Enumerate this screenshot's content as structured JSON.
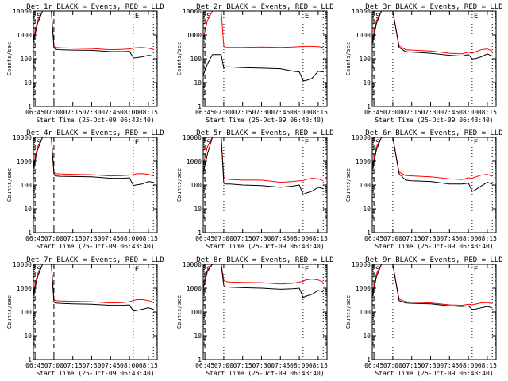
{
  "figure": {
    "shared_xlabel": "Start Time (25-Oct-09 06:43:40)",
    "shared_ylabel": "Counts/sec",
    "x_tick_labels": [
      "06:45",
      "07:00",
      "07:15",
      "07:30",
      "07:45",
      "08:00",
      "08:15"
    ],
    "y_tick_labels": [
      "1",
      "10",
      "100",
      "1000",
      "10000"
    ],
    "colors": {
      "events": "#000000",
      "lld": "#ff0000"
    }
  },
  "chart_data": [
    {
      "type": "line",
      "title": "Det 1r BLACK = Events, RED = LLD",
      "xlabel": "Start Time (25-Oct-09 06:43:40)",
      "ylabel": "Counts/sec",
      "yscale": "log",
      "ylim": [
        1,
        10000
      ],
      "xlim": [
        "06:43:40",
        "08:22"
      ],
      "x_ticks": [
        "06:45",
        "07:00",
        "07:15",
        "07:30",
        "07:45",
        "08:00",
        "08:15"
      ],
      "markers": {
        "S": "06:45",
        "E": "08:03"
      },
      "series": [
        {
          "color": "#000000",
          "x": [
            "06:43:40",
            "06:47",
            "06:51",
            "06:55",
            "06:58",
            "07:00",
            "07:01",
            "07:05",
            "07:15",
            "07:30",
            "07:45",
            "07:55",
            "08:00",
            "08:03",
            "08:05",
            "08:10",
            "08:15",
            "08:19"
          ],
          "y": [
            500,
            3000,
            10000,
            10000,
            10000,
            300,
            250,
            240,
            230,
            225,
            200,
            200,
            205,
            110,
            110,
            120,
            140,
            130
          ]
        },
        {
          "color": "#ff0000",
          "x": [
            "06:43:40",
            "06:47",
            "06:51",
            "06:55",
            "06:58",
            "07:00",
            "07:01",
            "07:05",
            "07:15",
            "07:30",
            "07:45",
            "07:55",
            "08:00",
            "08:03",
            "08:05",
            "08:10",
            "08:15",
            "08:19"
          ],
          "y": [
            700,
            4000,
            10000,
            10000,
            10000,
            350,
            300,
            290,
            280,
            270,
            240,
            250,
            260,
            280,
            290,
            300,
            280,
            250
          ]
        }
      ]
    },
    {
      "type": "line",
      "title": "Det 2r BLACK = Events, RED = LLD",
      "xlabel": "Start Time (25-Oct-09 06:43:40)",
      "ylabel": "Counts/sec",
      "yscale": "log",
      "ylim": [
        1,
        10000
      ],
      "xlim": [
        "06:43:40",
        "08:22"
      ],
      "x_ticks": [
        "06:45",
        "07:00",
        "07:15",
        "07:30",
        "07:45",
        "08:00",
        "08:15"
      ],
      "markers": {
        "S": "06:45",
        "E": "08:03"
      },
      "series": [
        {
          "color": "#000000",
          "x": [
            "06:43:40",
            "06:47",
            "06:51",
            "06:55",
            "06:58",
            "07:00",
            "07:01",
            "07:05",
            "07:15",
            "07:30",
            "07:45",
            "07:55",
            "08:00",
            "08:03",
            "08:05",
            "08:10",
            "08:15",
            "08:19"
          ],
          "y": [
            20,
            60,
            150,
            150,
            150,
            40,
            45,
            45,
            42,
            40,
            38,
            30,
            28,
            12,
            12,
            15,
            30,
            28
          ]
        },
        {
          "color": "#ff0000",
          "x": [
            "06:43:40",
            "06:47",
            "06:51",
            "06:55",
            "06:58",
            "07:00",
            "07:01",
            "07:05",
            "07:15",
            "07:30",
            "07:45",
            "07:55",
            "08:00",
            "08:03",
            "08:05",
            "08:10",
            "08:15",
            "08:19"
          ],
          "y": [
            700,
            4000,
            10000,
            10000,
            10000,
            350,
            300,
            300,
            300,
            310,
            300,
            310,
            320,
            320,
            330,
            330,
            320,
            300
          ]
        }
      ]
    },
    {
      "type": "line",
      "title": "Det 3r BLACK = Events, RED = LLD",
      "xlabel": "Start Time (25-Oct-09 06:43:40)",
      "ylabel": "Counts/sec",
      "yscale": "log",
      "ylim": [
        1,
        10000
      ],
      "xlim": [
        "06:43:40",
        "08:22"
      ],
      "x_ticks": [
        "06:45",
        "07:00",
        "07:15",
        "07:30",
        "07:45",
        "08:00",
        "08:15"
      ],
      "markers": {
        "S": "06:45",
        "E": "08:03"
      },
      "series": [
        {
          "color": "#000000",
          "x": [
            "06:43:40",
            "06:47",
            "06:51",
            "06:55",
            "07:00",
            "07:05",
            "07:10",
            "07:15",
            "07:30",
            "07:45",
            "07:55",
            "08:00",
            "08:03",
            "08:05",
            "08:10",
            "08:15",
            "08:19"
          ],
          "y": [
            400,
            3000,
            10000,
            10000,
            10000,
            300,
            200,
            190,
            170,
            140,
            130,
            150,
            100,
            100,
            120,
            160,
            130
          ]
        },
        {
          "color": "#ff0000",
          "x": [
            "06:43:40",
            "06:47",
            "06:51",
            "06:55",
            "07:00",
            "07:05",
            "07:10",
            "07:15",
            "07:30",
            "07:45",
            "07:55",
            "08:00",
            "08:03",
            "08:05",
            "08:10",
            "08:15",
            "08:19"
          ],
          "y": [
            600,
            4000,
            10000,
            10000,
            10000,
            350,
            240,
            230,
            210,
            170,
            160,
            190,
            170,
            190,
            240,
            260,
            210
          ]
        }
      ]
    },
    {
      "type": "line",
      "title": "Det 4r BLACK = Events, RED = LLD",
      "xlabel": "Start Time (25-Oct-09 06:43:40)",
      "ylabel": "Counts/sec",
      "yscale": "log",
      "ylim": [
        1,
        10000
      ],
      "xlim": [
        "06:43:40",
        "08:22"
      ],
      "x_ticks": [
        "06:45",
        "07:00",
        "07:15",
        "07:30",
        "07:45",
        "08:00",
        "08:15"
      ],
      "markers": {
        "S": "06:45",
        "E": "08:03"
      },
      "series": [
        {
          "color": "#000000",
          "x": [
            "06:43:40",
            "06:47",
            "06:51",
            "06:55",
            "06:58",
            "07:00",
            "07:01",
            "07:05",
            "07:15",
            "07:30",
            "07:45",
            "07:55",
            "08:00",
            "08:03",
            "08:05",
            "08:10",
            "08:15",
            "08:19"
          ],
          "y": [
            500,
            3000,
            10000,
            10000,
            10000,
            300,
            240,
            230,
            225,
            220,
            190,
            190,
            200,
            95,
            100,
            110,
            140,
            130
          ]
        },
        {
          "color": "#ff0000",
          "x": [
            "06:43:40",
            "06:47",
            "06:51",
            "06:55",
            "06:58",
            "07:00",
            "07:01",
            "07:05",
            "07:15",
            "07:30",
            "07:45",
            "07:55",
            "08:00",
            "08:03",
            "08:05",
            "08:10",
            "08:15",
            "08:19"
          ],
          "y": [
            700,
            4000,
            10000,
            10000,
            10000,
            350,
            300,
            290,
            280,
            270,
            240,
            250,
            260,
            270,
            290,
            300,
            280,
            240
          ]
        }
      ]
    },
    {
      "type": "line",
      "title": "Det 5r BLACK = Events, RED = LLD",
      "xlabel": "Start Time (25-Oct-09 06:43:40)",
      "ylabel": "Counts/sec",
      "yscale": "log",
      "ylim": [
        1,
        10000
      ],
      "xlim": [
        "06:43:40",
        "08:22"
      ],
      "x_ticks": [
        "06:45",
        "07:00",
        "07:15",
        "07:30",
        "07:45",
        "08:00",
        "08:15"
      ],
      "markers": {
        "S": "06:45",
        "E": "08:03"
      },
      "series": [
        {
          "color": "#000000",
          "x": [
            "06:43:40",
            "06:47",
            "06:51",
            "06:55",
            "06:58",
            "07:00",
            "07:01",
            "07:05",
            "07:15",
            "07:30",
            "07:45",
            "07:55",
            "08:00",
            "08:03",
            "08:05",
            "08:10",
            "08:15",
            "08:19"
          ],
          "y": [
            300,
            2000,
            10000,
            10000,
            10000,
            120,
            110,
            110,
            100,
            95,
            80,
            90,
            100,
            40,
            45,
            55,
            80,
            70
          ]
        },
        {
          "color": "#ff0000",
          "x": [
            "06:43:40",
            "06:47",
            "06:51",
            "06:55",
            "06:58",
            "07:00",
            "07:01",
            "07:05",
            "07:15",
            "07:30",
            "07:45",
            "07:55",
            "08:00",
            "08:03",
            "08:05",
            "08:10",
            "08:15",
            "08:19"
          ],
          "y": [
            700,
            4000,
            10000,
            10000,
            10000,
            220,
            180,
            170,
            160,
            160,
            130,
            140,
            150,
            150,
            170,
            190,
            180,
            150
          ]
        }
      ]
    },
    {
      "type": "line",
      "title": "Det 6r BLACK = Events, RED = LLD",
      "xlabel": "Start Time (25-Oct-09 06:43:40)",
      "ylabel": "Counts/sec",
      "yscale": "log",
      "ylim": [
        1,
        10000
      ],
      "xlim": [
        "06:43:40",
        "08:22"
      ],
      "x_ticks": [
        "06:45",
        "07:00",
        "07:15",
        "07:30",
        "07:45",
        "08:00",
        "08:15"
      ],
      "markers": {
        "S": "06:45",
        "E": "08:03"
      },
      "series": [
        {
          "color": "#000000",
          "x": [
            "06:43:40",
            "06:47",
            "06:51",
            "06:55",
            "07:00",
            "07:05",
            "07:10",
            "07:15",
            "07:30",
            "07:45",
            "07:55",
            "08:00",
            "08:03",
            "08:05",
            "08:10",
            "08:15",
            "08:19"
          ],
          "y": [
            400,
            3000,
            10000,
            10000,
            10000,
            300,
            160,
            150,
            140,
            110,
            110,
            120,
            55,
            60,
            90,
            130,
            110
          ]
        },
        {
          "color": "#ff0000",
          "x": [
            "06:43:40",
            "06:47",
            "06:51",
            "06:55",
            "07:00",
            "07:05",
            "07:10",
            "07:15",
            "07:30",
            "07:45",
            "07:55",
            "08:00",
            "08:03",
            "08:05",
            "08:10",
            "08:15",
            "08:19"
          ],
          "y": [
            600,
            4000,
            10000,
            10000,
            10000,
            350,
            250,
            240,
            220,
            180,
            170,
            200,
            190,
            210,
            260,
            280,
            230
          ]
        }
      ]
    },
    {
      "type": "line",
      "title": "Det 7r BLACK = Events, RED = LLD",
      "xlabel": "Start Time (25-Oct-09 06:43:40)",
      "ylabel": "Counts/sec",
      "yscale": "log",
      "ylim": [
        1,
        10000
      ],
      "xlim": [
        "06:43:40",
        "08:22"
      ],
      "x_ticks": [
        "06:45",
        "07:00",
        "07:15",
        "07:30",
        "07:45",
        "08:00",
        "08:15"
      ],
      "markers": {
        "S": "06:45",
        "E": "08:03"
      },
      "series": [
        {
          "color": "#000000",
          "x": [
            "06:43:40",
            "06:47",
            "06:51",
            "06:55",
            "06:58",
            "07:00",
            "07:01",
            "07:05",
            "07:15",
            "07:30",
            "07:45",
            "07:55",
            "08:00",
            "08:03",
            "08:05",
            "08:10",
            "08:15",
            "08:19"
          ],
          "y": [
            500,
            3000,
            10000,
            10000,
            10000,
            260,
            240,
            230,
            220,
            210,
            190,
            190,
            200,
            110,
            115,
            130,
            150,
            130
          ]
        },
        {
          "color": "#ff0000",
          "x": [
            "06:43:40",
            "06:47",
            "06:51",
            "06:55",
            "06:58",
            "07:00",
            "07:01",
            "07:05",
            "07:15",
            "07:30",
            "07:45",
            "07:55",
            "08:00",
            "08:03",
            "08:05",
            "08:10",
            "08:15",
            "08:19"
          ],
          "y": [
            700,
            4000,
            10000,
            10000,
            10000,
            350,
            300,
            290,
            280,
            270,
            240,
            250,
            270,
            300,
            320,
            330,
            300,
            260
          ]
        }
      ]
    },
    {
      "type": "line",
      "title": "Det 8r BLACK = Events, RED = LLD",
      "xlabel": "Start Time (25-Oct-09 06:43:40)",
      "ylabel": "Counts/sec",
      "yscale": "log",
      "ylim": [
        1,
        10000
      ],
      "xlim": [
        "06:43:40",
        "08:22"
      ],
      "x_ticks": [
        "06:45",
        "07:00",
        "07:15",
        "07:30",
        "07:45",
        "08:00",
        "08:15"
      ],
      "markers": {
        "S": "06:45",
        "E": "08:03"
      },
      "series": [
        {
          "color": "#000000",
          "x": [
            "06:43:40",
            "06:47",
            "06:51",
            "06:55",
            "06:58",
            "07:00",
            "07:01",
            "07:05",
            "07:15",
            "07:30",
            "07:45",
            "07:55",
            "08:00",
            "08:03",
            "08:05",
            "08:10",
            "08:15",
            "08:19"
          ],
          "y": [
            1000,
            5000,
            10000,
            10000,
            10000,
            1300,
            1150,
            1100,
            1050,
            1000,
            900,
            950,
            1000,
            400,
            450,
            550,
            800,
            700
          ]
        },
        {
          "color": "#ff0000",
          "x": [
            "06:43:40",
            "06:47",
            "06:51",
            "06:55",
            "06:58",
            "07:00",
            "07:01",
            "07:05",
            "07:15",
            "07:30",
            "07:45",
            "07:55",
            "08:00",
            "08:03",
            "08:05",
            "08:10",
            "08:15",
            "08:19"
          ],
          "y": [
            1500,
            6000,
            10000,
            10000,
            10000,
            2200,
            1900,
            1800,
            1750,
            1700,
            1500,
            1600,
            1800,
            1900,
            2200,
            2400,
            2200,
            1800
          ]
        }
      ]
    },
    {
      "type": "line",
      "title": "Det 9r BLACK = Events, RED = LLD",
      "xlabel": "Start Time (25-Oct-09 06:43:40)",
      "ylabel": "Counts/sec",
      "yscale": "log",
      "ylim": [
        1,
        10000
      ],
      "xlim": [
        "06:43:40",
        "08:22"
      ],
      "x_ticks": [
        "06:45",
        "07:00",
        "07:15",
        "07:30",
        "07:45",
        "08:00",
        "08:15"
      ],
      "markers": {
        "S": "06:45",
        "E": "08:03"
      },
      "series": [
        {
          "color": "#000000",
          "x": [
            "06:43:40",
            "06:47",
            "06:51",
            "06:55",
            "07:00",
            "07:05",
            "07:10",
            "07:15",
            "07:30",
            "07:45",
            "07:55",
            "08:00",
            "08:03",
            "08:05",
            "08:10",
            "08:15",
            "08:19"
          ],
          "y": [
            400,
            3000,
            10000,
            10000,
            10000,
            300,
            240,
            230,
            220,
            180,
            170,
            180,
            130,
            130,
            150,
            170,
            150
          ]
        },
        {
          "color": "#ff0000",
          "x": [
            "06:43:40",
            "06:47",
            "06:51",
            "06:55",
            "07:00",
            "07:05",
            "07:10",
            "07:15",
            "07:30",
            "07:45",
            "07:55",
            "08:00",
            "08:03",
            "08:05",
            "08:10",
            "08:15",
            "08:19"
          ],
          "y": [
            600,
            4000,
            10000,
            10000,
            10000,
            350,
            270,
            260,
            240,
            200,
            190,
            210,
            200,
            210,
            240,
            250,
            220
          ]
        }
      ]
    }
  ]
}
